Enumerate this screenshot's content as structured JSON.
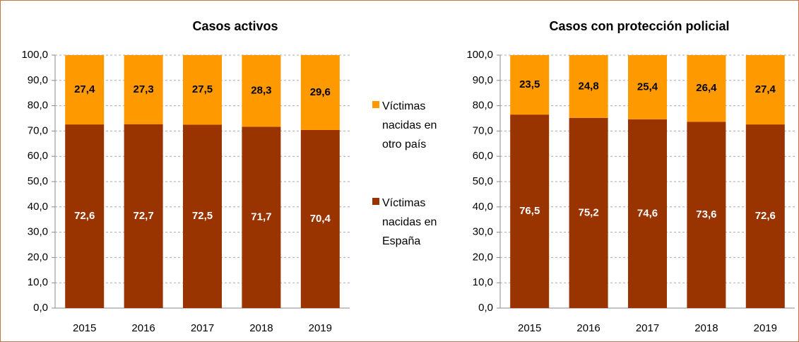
{
  "chart_data": [
    {
      "type": "bar",
      "stacked": true,
      "title": "Casos activos",
      "categories": [
        "2015",
        "2016",
        "2017",
        "2018",
        "2019"
      ],
      "series": [
        {
          "name": "Víctimas nacidas en España",
          "color": "#993300",
          "values": [
            72.6,
            72.7,
            72.5,
            71.7,
            70.4
          ],
          "value_labels": [
            "72,6",
            "72,7",
            "72,5",
            "71,7",
            "70,4"
          ]
        },
        {
          "name": "Víctimas nacidas en otro país",
          "color": "#ff9900",
          "values": [
            27.4,
            27.3,
            27.5,
            28.3,
            29.6
          ],
          "value_labels": [
            "27,4",
            "27,3",
            "27,5",
            "28,3",
            "29,6"
          ]
        }
      ],
      "ylim": [
        0,
        100
      ],
      "yticks": [
        {
          "value": 0,
          "label": "0,0"
        },
        {
          "value": 10,
          "label": "10,0"
        },
        {
          "value": 20,
          "label": "20,0"
        },
        {
          "value": 30,
          "label": "30,0"
        },
        {
          "value": 40,
          "label": "40,0"
        },
        {
          "value": 50,
          "label": "50,0"
        },
        {
          "value": 60,
          "label": "60,0"
        },
        {
          "value": 70,
          "label": "70,0"
        },
        {
          "value": 80,
          "label": "80,0"
        },
        {
          "value": 90,
          "label": "90,0"
        },
        {
          "value": 100,
          "label": "100,0"
        }
      ],
      "grid": true,
      "legend": "right"
    },
    {
      "type": "bar",
      "stacked": true,
      "title": "Casos con protección policial",
      "categories": [
        "2015",
        "2016",
        "2017",
        "2018",
        "2019"
      ],
      "series": [
        {
          "color": "#993300",
          "values": [
            76.5,
            75.2,
            74.6,
            73.6,
            72.6
          ],
          "value_labels": [
            "76,5",
            "75,2",
            "74,6",
            "73,6",
            "72,6"
          ]
        },
        {
          "color": "#ff9900",
          "values": [
            23.5,
            24.8,
            25.4,
            26.4,
            27.4
          ],
          "value_labels": [
            "23,5",
            "24,8",
            "25,4",
            "26,4",
            "27,4"
          ]
        }
      ],
      "ylim": [
        0,
        100
      ],
      "yticks": [
        {
          "value": 0,
          "label": "0,0"
        },
        {
          "value": 10,
          "label": "10,0"
        },
        {
          "value": 20,
          "label": "20,0"
        },
        {
          "value": 30,
          "label": "30,0"
        },
        {
          "value": 40,
          "label": "40,0"
        },
        {
          "value": 50,
          "label": "50,0"
        },
        {
          "value": 60,
          "label": "60,0"
        },
        {
          "value": 70,
          "label": "70,0"
        },
        {
          "value": 80,
          "label": "80,0"
        },
        {
          "value": 90,
          "label": "90,0"
        },
        {
          "value": 100,
          "label": "100,0"
        }
      ],
      "grid": true
    }
  ]
}
